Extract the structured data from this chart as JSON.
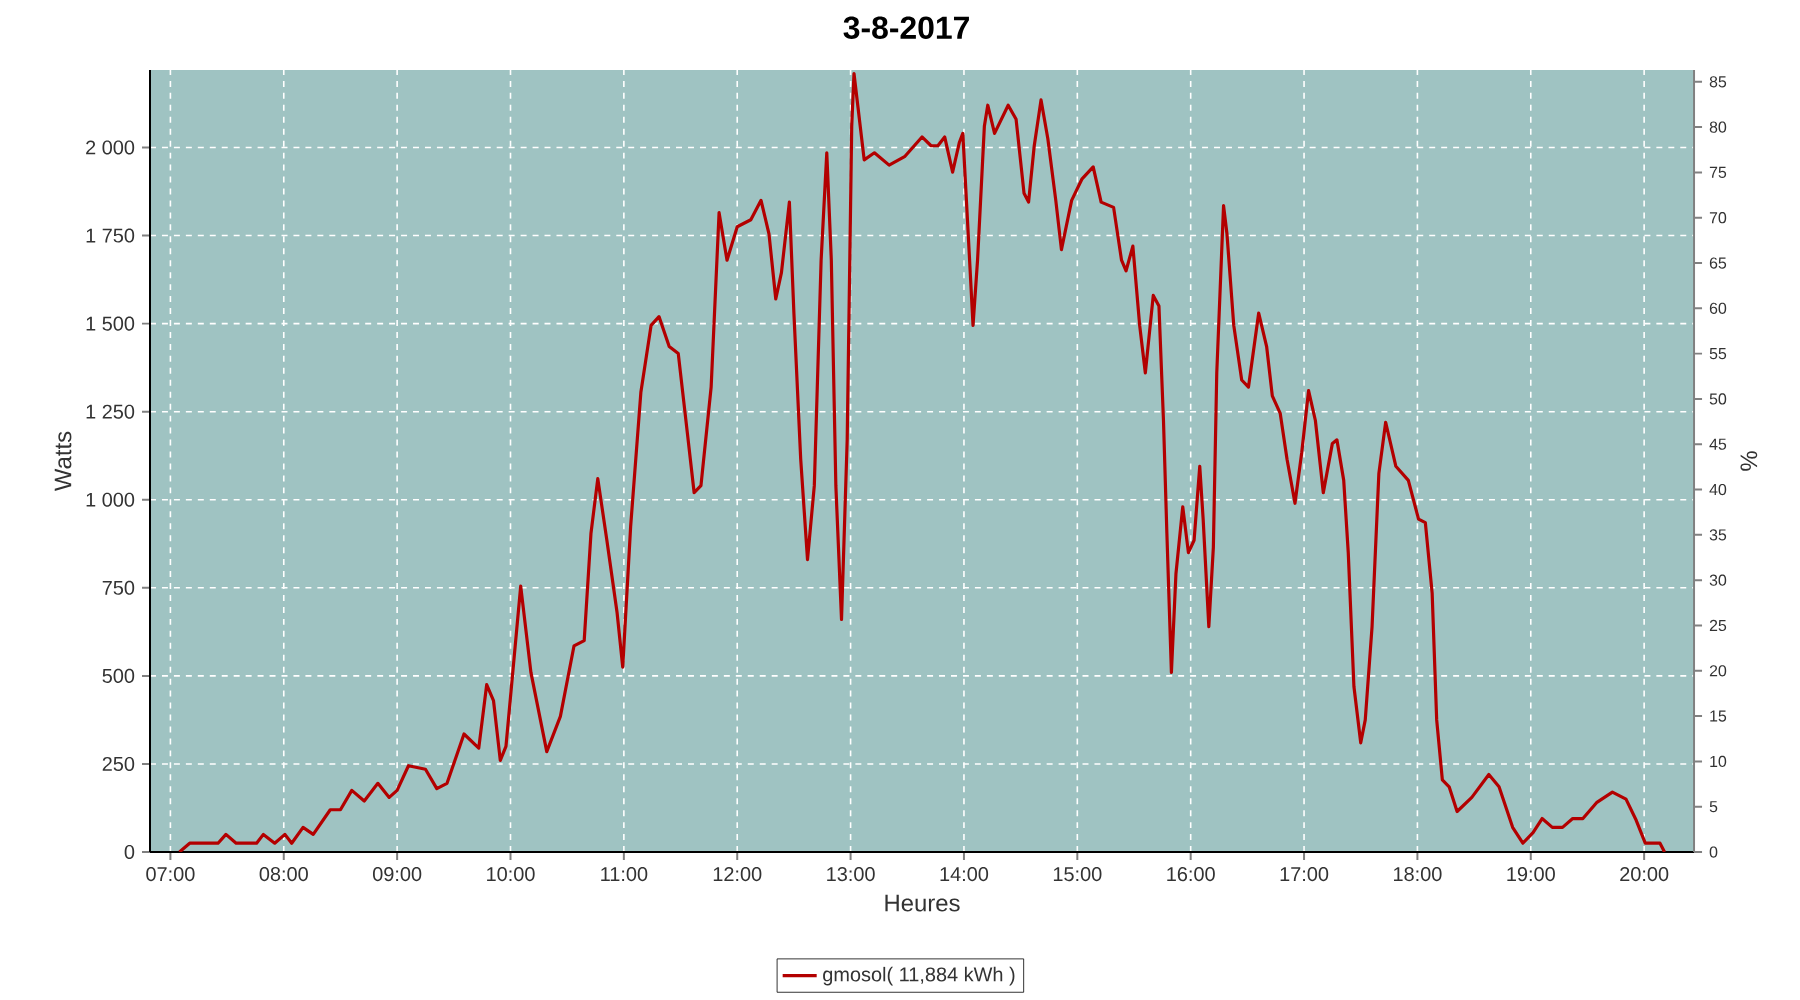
{
  "chart_data": {
    "type": "line",
    "title": "3-8-2017",
    "xlabel": "Heures",
    "ylabel": "Watts",
    "y2label": "%",
    "xlim": [
      6.82,
      20.44
    ],
    "xticks": [
      {
        "value": 7,
        "label": "07:00"
      },
      {
        "value": 8,
        "label": "08:00"
      },
      {
        "value": 9,
        "label": "09:00"
      },
      {
        "value": 10,
        "label": "10:00"
      },
      {
        "value": 11,
        "label": "11:00"
      },
      {
        "value": 12,
        "label": "12:00"
      },
      {
        "value": 13,
        "label": "13:00"
      },
      {
        "value": 14,
        "label": "14:00"
      },
      {
        "value": 15,
        "label": "15:00"
      },
      {
        "value": 16,
        "label": "16:00"
      },
      {
        "value": 17,
        "label": "17:00"
      },
      {
        "value": 18,
        "label": "18:00"
      },
      {
        "value": 19,
        "label": "19:00"
      },
      {
        "value": 20,
        "label": "20:00"
      }
    ],
    "ylim": [
      0,
      2220
    ],
    "yticks": [
      0,
      250,
      500,
      750,
      {
        "value": 1000,
        "label": "1 000"
      },
      {
        "value": 1250,
        "label": "1 250"
      },
      {
        "value": 1500,
        "label": "1 500"
      },
      {
        "value": 1750,
        "label": "1 750"
      },
      {
        "value": 2000,
        "label": "2 000"
      }
    ],
    "y2lim": [
      0,
      86.3
    ],
    "y2ticks": [
      0,
      5,
      10,
      15,
      20,
      25,
      30,
      35,
      40,
      45,
      50,
      55,
      60,
      65,
      70,
      75,
      80,
      85
    ],
    "grid": true,
    "legend": "bottom",
    "marker": "none",
    "line_style": "solid",
    "series": [
      {
        "name": "gmosol( 11,884 kWh )",
        "color": "#b30000",
        "x": [
          7.08,
          7.17,
          7.42,
          7.49,
          7.58,
          7.76,
          7.82,
          7.92,
          8.01,
          8.07,
          8.17,
          8.26,
          8.41,
          8.5,
          8.6,
          8.71,
          8.83,
          8.93,
          9.0,
          9.1,
          9.25,
          9.35,
          9.44,
          9.59,
          9.72,
          9.79,
          9.85,
          9.91,
          9.96,
          10.09,
          10.18,
          10.32,
          10.44,
          10.56,
          10.65,
          10.71,
          10.77,
          10.85,
          10.94,
          10.99,
          11.06,
          11.15,
          11.24,
          11.31,
          11.4,
          11.48,
          11.56,
          11.62,
          11.68,
          11.77,
          11.84,
          11.91,
          12.0,
          12.12,
          12.21,
          12.28,
          12.34,
          12.39,
          12.46,
          12.5,
          12.56,
          12.62,
          12.68,
          12.74,
          12.79,
          12.83,
          12.87,
          12.92,
          12.97,
          13.01,
          13.03,
          13.12,
          13.21,
          13.34,
          13.48,
          13.63,
          13.71,
          13.77,
          13.83,
          13.9,
          13.96,
          13.99,
          14.04,
          14.08,
          14.12,
          14.18,
          14.21,
          14.27,
          14.39,
          14.46,
          14.53,
          14.57,
          14.62,
          14.68,
          14.74,
          14.81,
          14.86,
          14.95,
          15.04,
          15.14,
          15.21,
          15.32,
          15.39,
          15.43,
          15.49,
          15.55,
          15.6,
          15.67,
          15.72,
          15.76,
          15.79,
          15.83,
          15.87,
          15.93,
          15.98,
          16.03,
          16.08,
          16.11,
          16.16,
          16.2,
          16.23,
          16.29,
          16.32,
          16.38,
          16.45,
          16.51,
          16.6,
          16.67,
          16.72,
          16.79,
          16.85,
          16.92,
          16.98,
          17.04,
          17.1,
          17.17,
          17.25,
          17.29,
          17.35,
          17.39,
          17.44,
          17.5,
          17.54,
          17.6,
          17.66,
          17.72,
          17.81,
          17.92,
          18.01,
          18.07,
          18.13,
          18.17,
          18.22,
          18.28,
          18.35,
          18.48,
          18.63,
          18.72,
          18.84,
          18.93,
          19.02,
          19.1,
          19.19,
          19.28,
          19.37,
          19.46,
          19.58,
          19.72,
          19.84,
          19.93,
          20.01,
          20.14,
          20.18
        ],
        "values": [
          0,
          25,
          25,
          50,
          25,
          25,
          50,
          25,
          50,
          25,
          70,
          50,
          120,
          120,
          175,
          145,
          195,
          155,
          175,
          245,
          235,
          180,
          195,
          335,
          295,
          475,
          430,
          260,
          300,
          755,
          510,
          285,
          385,
          585,
          600,
          905,
          1060,
          885,
          680,
          525,
          925,
          1305,
          1495,
          1520,
          1435,
          1415,
          1190,
          1020,
          1040,
          1320,
          1815,
          1680,
          1775,
          1795,
          1850,
          1755,
          1570,
          1645,
          1845,
          1530,
          1115,
          830,
          1040,
          1680,
          1985,
          1680,
          1040,
          660,
          1170,
          2060,
          2210,
          1965,
          1985,
          1950,
          1975,
          2030,
          2005,
          2005,
          2030,
          1930,
          2015,
          2040,
          1740,
          1495,
          1680,
          2060,
          2120,
          2040,
          2120,
          2080,
          1870,
          1845,
          2005,
          2135,
          2025,
          1850,
          1710,
          1850,
          1910,
          1945,
          1845,
          1830,
          1680,
          1650,
          1720,
          1495,
          1360,
          1580,
          1550,
          1225,
          905,
          510,
          790,
          980,
          850,
          885,
          1095,
          945,
          640,
          865,
          1360,
          1835,
          1755,
          1495,
          1340,
          1320,
          1530,
          1435,
          1295,
          1245,
          1115,
          990,
          1135,
          1310,
          1225,
          1020,
          1160,
          1170,
          1055,
          850,
          470,
          310,
          375,
          640,
          1075,
          1220,
          1095,
          1055,
          945,
          935,
          735,
          375,
          205,
          185,
          115,
          155,
          220,
          185,
          70,
          25,
          55,
          95,
          70,
          70,
          95,
          95,
          140,
          170,
          150,
          90,
          25,
          25,
          0
        ]
      }
    ]
  }
}
